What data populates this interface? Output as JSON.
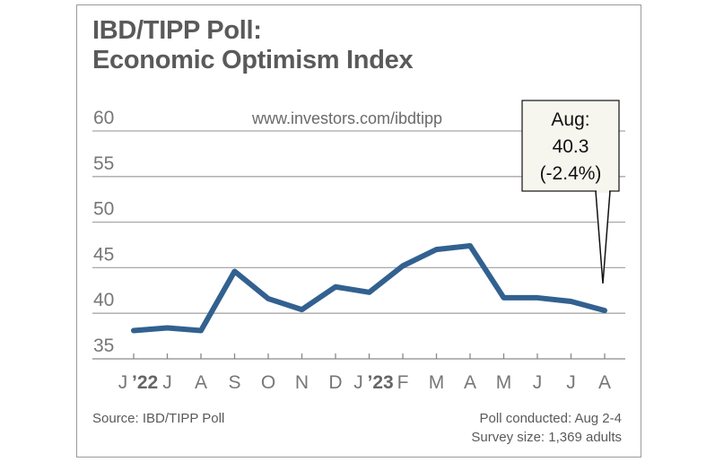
{
  "chart_data": {
    "type": "line",
    "title_line1": "IBD/TIPP Poll:",
    "title_line2": "Economic Optimism Index",
    "subtitle": "www.investors.com/ibdtipp",
    "xlabel": "",
    "ylabel": "",
    "ylim": [
      35,
      60
    ],
    "y_ticks": [
      "35",
      "40",
      "45",
      "50",
      "55",
      "60"
    ],
    "categories": [
      "J",
      "J",
      "A",
      "S",
      "O",
      "N",
      "D",
      "J",
      "F",
      "M",
      "A",
      "M",
      "J",
      "J",
      "A"
    ],
    "year_labels": {
      "0": "’22",
      "7": "’23"
    },
    "series": [
      {
        "name": "Economic Optimism Index",
        "values": [
          38.1,
          38.4,
          38.1,
          44.6,
          41.6,
          40.4,
          42.9,
          42.3,
          45.2,
          47.0,
          47.4,
          41.7,
          41.7,
          41.3,
          40.3
        ]
      }
    ],
    "grid": true,
    "line_color": "#326190",
    "annotation": {
      "line1": "Aug:",
      "line2": "40.3",
      "line3": "(-2.4%)"
    }
  },
  "footer": {
    "source": "Source: IBD/TIPP Poll",
    "conducted": "Poll conducted:  Aug 2-4",
    "survey_size": "Survey size: 1,369 adults"
  }
}
